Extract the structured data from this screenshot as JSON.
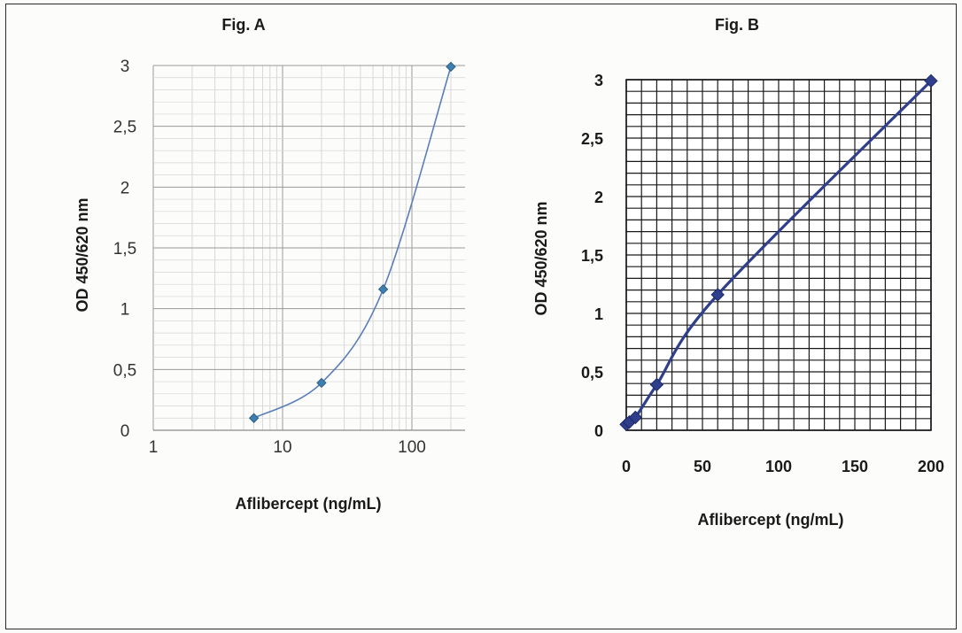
{
  "chart_data": [
    {
      "id": "figA",
      "type": "scatter",
      "title": "Fig. A",
      "xlabel": "Aflibercept (ng/mL)",
      "ylabel": "OD 450/620 nm",
      "xscale": "log",
      "xlim": [
        1,
        300
      ],
      "ylim": [
        0,
        3
      ],
      "xticks": [
        {
          "value": 1,
          "label": "1"
        },
        {
          "value": 10,
          "label": "10"
        },
        {
          "value": 100,
          "label": "100"
        }
      ],
      "yticks": [
        {
          "value": 0,
          "label": "0"
        },
        {
          "value": 0.5,
          "label": "0,5"
        },
        {
          "value": 1,
          "label": "1"
        },
        {
          "value": 1.5,
          "label": "1,5"
        },
        {
          "value": 2,
          "label": "2"
        },
        {
          "value": 2.5,
          "label": "2,5"
        },
        {
          "value": 3,
          "label": "3"
        }
      ],
      "grid": true,
      "series": [
        {
          "x": [
            6,
            20,
            60,
            200
          ],
          "y": [
            0.1,
            0.39,
            1.16,
            2.99
          ],
          "color": "#5a7fb8",
          "marker_color": "#3f7fae"
        }
      ]
    },
    {
      "id": "figB",
      "type": "line",
      "title": "Fig. B",
      "xlabel": "Aflibercept (ng/mL)",
      "ylabel": "OD 450/620 nm",
      "xscale": "linear",
      "xlim": [
        0,
        200
      ],
      "ylim": [
        0,
        3
      ],
      "xticks": [
        {
          "value": 0,
          "label": "0"
        },
        {
          "value": 50,
          "label": "50"
        },
        {
          "value": 100,
          "label": "100"
        },
        {
          "value": 150,
          "label": "150"
        },
        {
          "value": 200,
          "label": "200"
        }
      ],
      "yticks": [
        {
          "value": 0,
          "label": "0"
        },
        {
          "value": 0.5,
          "label": "0,5"
        },
        {
          "value": 1,
          "label": "1"
        },
        {
          "value": 1.5,
          "label": "1,5"
        },
        {
          "value": 2,
          "label": "2"
        },
        {
          "value": 2.5,
          "label": "2,5"
        },
        {
          "value": 3,
          "label": "3"
        }
      ],
      "grid": true,
      "series": [
        {
          "x": [
            0,
            2,
            6,
            20,
            60,
            200
          ],
          "y": [
            0.05,
            0.07,
            0.11,
            0.39,
            1.16,
            2.99
          ],
          "color": "#2f3f8c",
          "marker_color": "#2f3f8c"
        }
      ]
    }
  ]
}
